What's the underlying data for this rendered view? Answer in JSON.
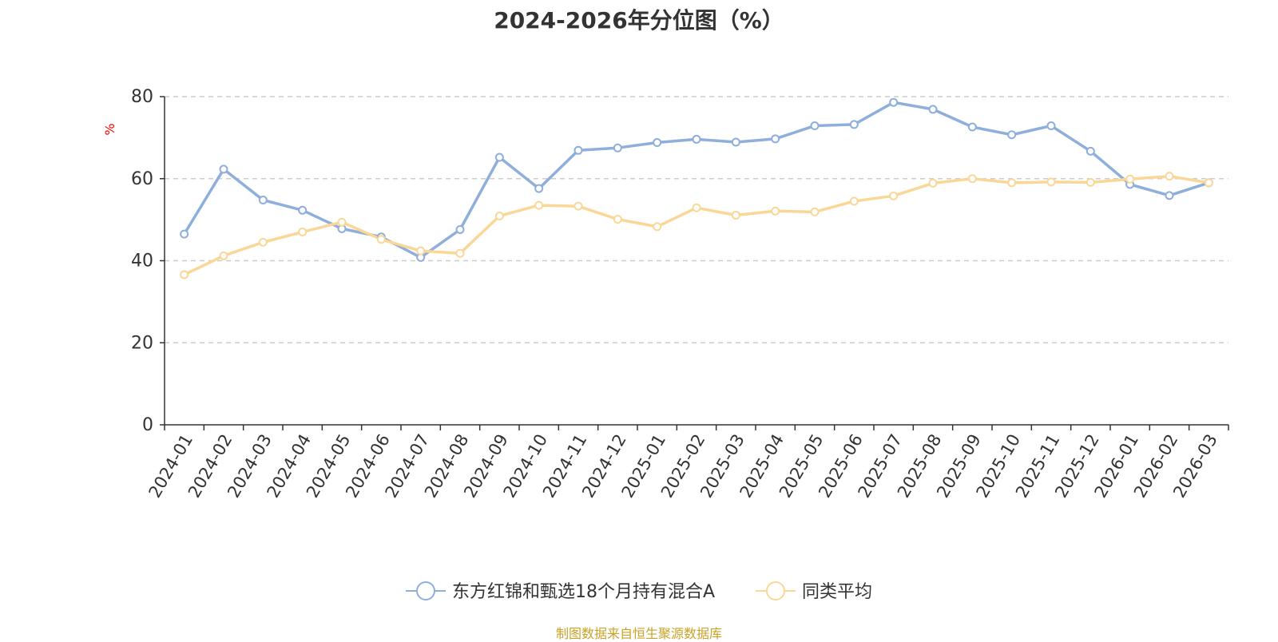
{
  "chart_data": {
    "type": "line",
    "title": "2024-2026年分位图（%）",
    "ylabel": "%",
    "xlabel": "",
    "ylim": [
      0,
      80
    ],
    "yticks": [
      0,
      20,
      40,
      60,
      80
    ],
    "grid": true,
    "legend_position": "bottom",
    "categories": [
      "2024-01",
      "2024-02",
      "2024-03",
      "2024-04",
      "2024-05",
      "2024-06",
      "2024-07",
      "2024-08",
      "2024-09",
      "2024-10",
      "2024-11",
      "2024-12",
      "2025-01",
      "2025-02",
      "2025-03",
      "2025-04",
      "2025-05",
      "2025-06",
      "2025-07",
      "2025-08",
      "2025-09",
      "2025-10",
      "2025-11",
      "2025-12",
      "2026-01",
      "2026-02",
      "2026-03"
    ],
    "series": [
      {
        "name": "东方红锦和甄选18个月持有混合A",
        "color": "#8eaedb",
        "values": [
          46.5,
          62.3,
          54.8,
          52.3,
          47.8,
          45.8,
          40.8,
          47.6,
          65.2,
          57.6,
          66.9,
          67.5,
          68.8,
          69.6,
          68.9,
          69.7,
          72.9,
          73.2,
          78.6,
          76.9,
          72.6,
          70.7,
          72.9,
          66.7,
          58.6,
          55.9,
          59.0
        ]
      },
      {
        "name": "同类平均",
        "color": "#fad797",
        "values": [
          36.6,
          41.2,
          44.5,
          47.0,
          49.4,
          45.2,
          42.4,
          41.8,
          50.9,
          53.5,
          53.3,
          50.1,
          48.3,
          52.9,
          51.1,
          52.1,
          51.9,
          54.5,
          55.8,
          58.9,
          60.0,
          59.0,
          59.2,
          59.1,
          59.9,
          60.6,
          59.0
        ]
      }
    ]
  },
  "footer": {
    "source": "制图数据来自恒生聚源数据库"
  }
}
